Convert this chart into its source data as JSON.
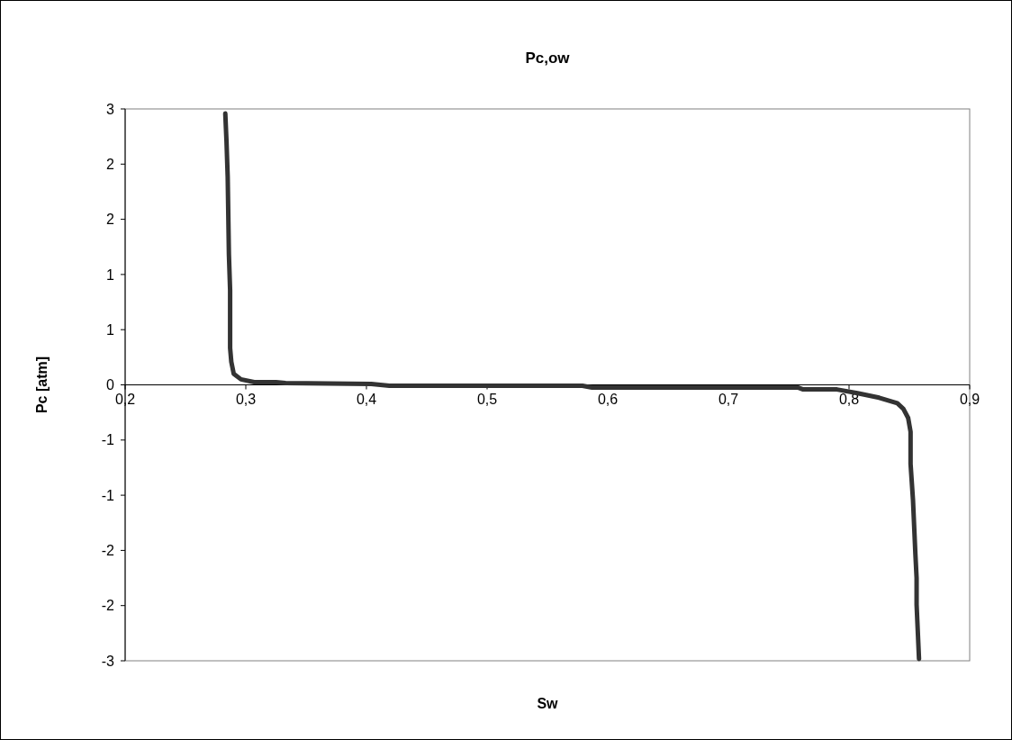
{
  "chart_data": {
    "type": "line",
    "title": "Pc,ow",
    "xlabel": "Sw",
    "ylabel": "Pc [atm]",
    "xlim": [
      0.2,
      0.9
    ],
    "ylim": [
      -3,
      3
    ],
    "xticks": [
      {
        "value": 0.2,
        "label": "0,2"
      },
      {
        "value": 0.3,
        "label": "0,3"
      },
      {
        "value": 0.4,
        "label": "0,4"
      },
      {
        "value": 0.5,
        "label": "0,5"
      },
      {
        "value": 0.6,
        "label": "0,6"
      },
      {
        "value": 0.7,
        "label": "0,7"
      },
      {
        "value": 0.8,
        "label": "0,8"
      },
      {
        "value": 0.9,
        "label": "0,9"
      }
    ],
    "yticks": [
      {
        "value": -3,
        "label": "-3"
      },
      {
        "value": -2.4,
        "label": "-2"
      },
      {
        "value": -1.8,
        "label": "-2"
      },
      {
        "value": -1.2,
        "label": "-1"
      },
      {
        "value": -0.6,
        "label": "-1"
      },
      {
        "value": 0,
        "label": "0"
      },
      {
        "value": 0.6,
        "label": "1"
      },
      {
        "value": 1.2,
        "label": "1"
      },
      {
        "value": 1.8,
        "label": "2"
      },
      {
        "value": 2.4,
        "label": "2"
      },
      {
        "value": 3,
        "label": "3"
      }
    ],
    "grid": false,
    "marker": "none",
    "line_style": "solid",
    "series": [
      {
        "color": "#333333",
        "x": [
          0.283,
          0.284,
          0.285,
          0.286,
          0.287,
          0.287,
          0.288,
          0.29,
          0.296,
          0.307,
          0.325,
          0.333,
          0.404,
          0.419,
          0.579,
          0.587,
          0.758,
          0.762,
          0.79,
          0.807,
          0.825,
          0.84,
          0.845,
          0.849,
          0.851,
          0.851,
          0.851,
          0.853,
          0.855,
          0.856,
          0.856,
          0.858
        ],
        "values": [
          2.95,
          2.65,
          2.26,
          1.42,
          1.03,
          0.4,
          0.25,
          0.12,
          0.06,
          0.03,
          0.03,
          0.02,
          0.01,
          -0.01,
          -0.01,
          -0.03,
          -0.03,
          -0.05,
          -0.05,
          -0.09,
          -0.14,
          -0.2,
          -0.26,
          -0.36,
          -0.51,
          -0.61,
          -0.86,
          -1.25,
          -1.84,
          -2.1,
          -2.39,
          -2.98
        ]
      }
    ]
  }
}
